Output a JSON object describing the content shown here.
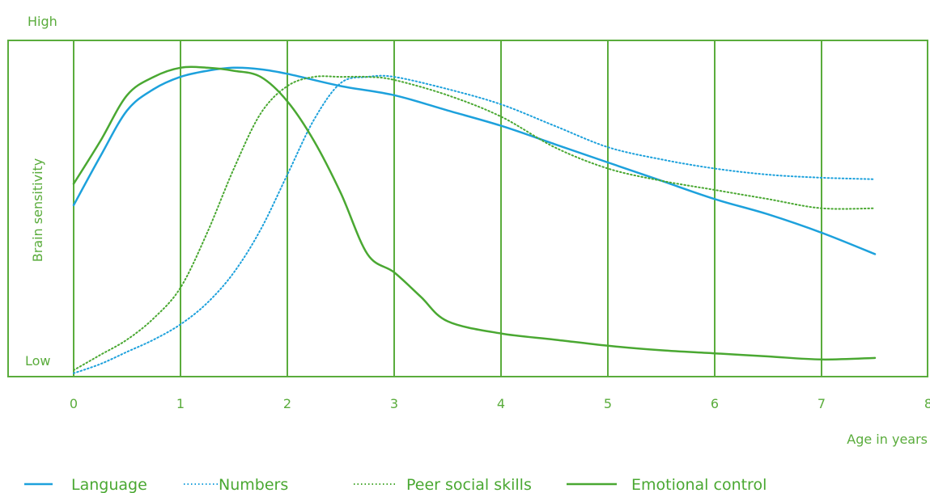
{
  "chart_data": {
    "type": "line",
    "title": "",
    "xlabel": "Age in years",
    "ylabel": "Brain sensitivity",
    "y_high_label": "High",
    "y_low_label": "Low",
    "xlim": [
      0,
      8
    ],
    "ylim": [
      0,
      100
    ],
    "x_ticks": [
      0,
      1,
      2,
      3,
      4,
      5,
      6,
      7,
      8
    ],
    "grid": "vertical",
    "legend_position": "bottom",
    "colors": {
      "grid": "#5aac3c",
      "blue": "#1da1dc",
      "green": "#4aa832"
    },
    "series": [
      {
        "name": "Language",
        "style": "solid",
        "color": "#1da1dc",
        "x": [
          0,
          0.25,
          0.5,
          0.75,
          1,
          1.25,
          1.5,
          1.75,
          2,
          2.5,
          3,
          3.5,
          4,
          4.5,
          5,
          5.5,
          6,
          6.5,
          7,
          7.5
        ],
        "y": [
          54,
          70,
          85,
          92,
          96,
          98,
          99,
          98.5,
          97,
          93,
          90,
          85,
          80,
          74,
          68,
          62,
          56,
          51,
          45,
          38
        ]
      },
      {
        "name": "Numbers",
        "style": "dotted",
        "color": "#1da1dc",
        "x": [
          0,
          0.25,
          0.5,
          0.75,
          1,
          1.25,
          1.5,
          1.75,
          2,
          2.25,
          2.5,
          2.75,
          3,
          3.5,
          4,
          4.5,
          5,
          5.5,
          6,
          6.5,
          7,
          7.5
        ],
        "y": [
          -1,
          2,
          6,
          10,
          15,
          22,
          32,
          46,
          64,
          82,
          94,
          96,
          96,
          92,
          87,
          80,
          73,
          69,
          66,
          64,
          63,
          62.5
        ]
      },
      {
        "name": "Peer social skills",
        "style": "dotted",
        "color": "#4aa832",
        "x": [
          0,
          0.25,
          0.5,
          0.75,
          1,
          1.25,
          1.5,
          1.75,
          2,
          2.25,
          2.5,
          2.75,
          3,
          3.5,
          4,
          4.5,
          5,
          5.5,
          6,
          6.5,
          7,
          7.5
        ],
        "y": [
          0,
          5,
          10,
          17,
          27,
          45,
          66,
          84,
          93,
          96,
          96,
          96,
          95,
          90,
          83,
          73,
          66,
          62,
          59,
          56,
          53,
          53
        ]
      },
      {
        "name": "Emotional control",
        "style": "solid",
        "color": "#4aa832",
        "x": [
          0,
          0.25,
          0.5,
          0.75,
          1,
          1.25,
          1.5,
          1.75,
          2,
          2.25,
          2.5,
          2.75,
          3,
          3.25,
          3.5,
          4,
          4.5,
          5,
          5.5,
          6,
          6.5,
          7,
          7.5
        ],
        "y": [
          61,
          75,
          90,
          96,
          99,
          99,
          98,
          96,
          88,
          75,
          58,
          38,
          32,
          24,
          16,
          12,
          10,
          8,
          6.5,
          5.5,
          4.5,
          3.5,
          4
        ]
      }
    ]
  }
}
